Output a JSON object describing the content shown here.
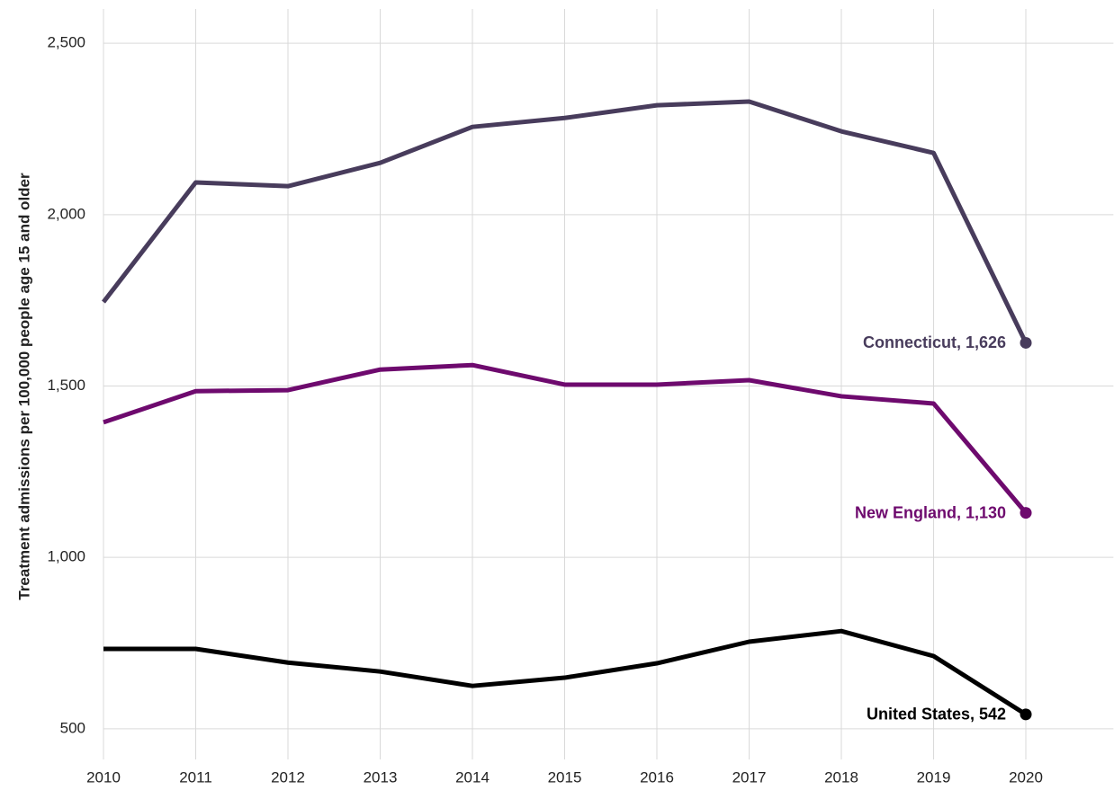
{
  "chart_data": {
    "type": "line",
    "y_label": "Treatment admissions per 100,000 people age 15 and older",
    "x": [
      2010,
      2011,
      2012,
      2013,
      2014,
      2015,
      2016,
      2017,
      2018,
      2019,
      2020
    ],
    "xlim": [
      2010,
      2020.95
    ],
    "xticks": [
      2010,
      2011,
      2012,
      2013,
      2014,
      2015,
      2016,
      2017,
      2018,
      2019,
      2020
    ],
    "ylim": [
      400,
      2600
    ],
    "yticks": [
      500,
      {
        "value": 1000,
        "label": "1,000"
      },
      {
        "value": 1500,
        "label": "1,500"
      },
      {
        "value": 2000,
        "label": "2,000"
      },
      {
        "value": 2500,
        "label": "2,500"
      }
    ],
    "grid": true,
    "series": [
      {
        "name": "Connecticut",
        "color": "#483c5c",
        "end_label": "Connecticut, 1,626",
        "values": [
          1745,
          2094,
          2083,
          2151,
          2256,
          2282,
          2319,
          2330,
          2243,
          2180,
          1626
        ]
      },
      {
        "name": "New England",
        "color": "#6e0a6e",
        "end_label": "New England, 1,130",
        "values": [
          1394,
          1485,
          1488,
          1548,
          1561,
          1504,
          1504,
          1517,
          1470,
          1449,
          1130
        ]
      },
      {
        "name": "United States",
        "color": "#000000",
        "end_label": "United States, 542",
        "values": [
          733,
          733,
          693,
          667,
          625,
          649,
          691,
          754,
          785,
          712,
          542
        ]
      }
    ]
  }
}
